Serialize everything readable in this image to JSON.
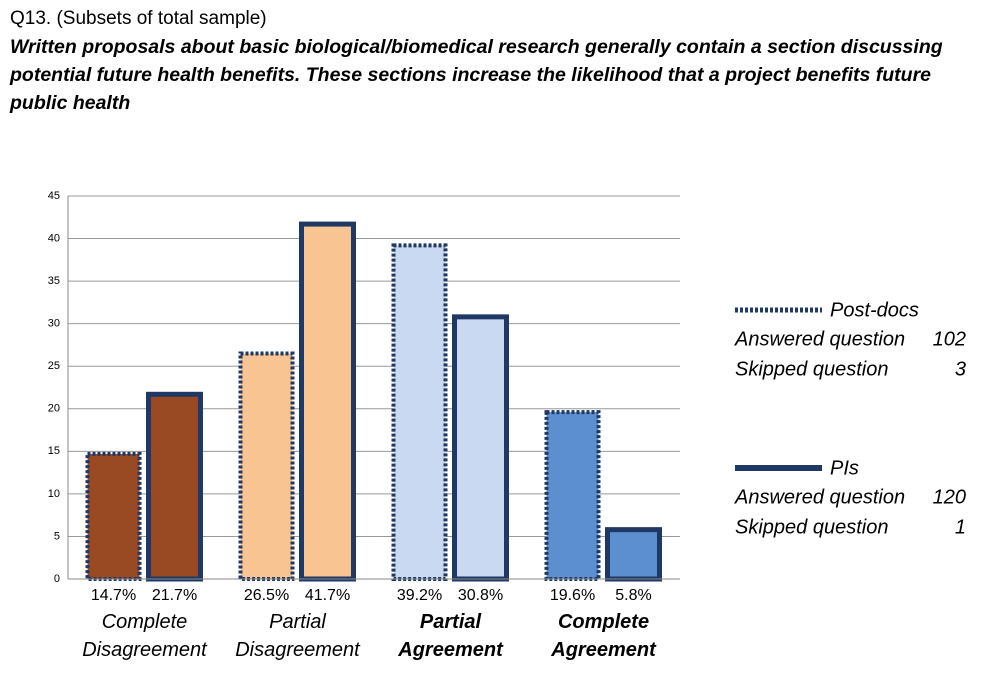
{
  "chart_data": {
    "type": "bar",
    "title": "Q13. (Subsets of total sample)",
    "subtitle": "Written proposals about basic biological/biomedical research generally contain a section discussing potential future health benefits. These sections increase the likelihood that a project benefits future public health",
    "categories": [
      "Complete Disagreement",
      "Partial Disagreement",
      "Partial Agreement",
      "Complete Agreement"
    ],
    "category_bold": [
      false,
      false,
      true,
      true
    ],
    "colors": [
      "#9a4a22",
      "#f8c491",
      "#c8d9f1",
      "#5b8fd0"
    ],
    "series": [
      {
        "name": "Post-docs",
        "color": "#1f3864",
        "line_style": "dotted",
        "values": [
          14.7,
          26.5,
          39.2,
          19.6
        ],
        "value_labels": [
          "14.7%",
          "26.5%",
          "39.2%",
          "19.6%"
        ],
        "notes": [
          {
            "label": "Answered question",
            "value": 102
          },
          {
            "label": "Skipped question",
            "value": 3
          }
        ]
      },
      {
        "name": "PIs",
        "color": "#1f3864",
        "line_style": "solid",
        "values": [
          21.7,
          41.7,
          30.8,
          5.8
        ],
        "value_labels": [
          "21.7%",
          "41.7%",
          "30.8%",
          "5.8%"
        ],
        "notes": [
          {
            "label": "Answered question",
            "value": 120
          },
          {
            "label": "Skipped question",
            "value": 1
          }
        ]
      }
    ],
    "ylim": [
      0,
      45
    ],
    "yticks": [
      0,
      5,
      10,
      15,
      20,
      25,
      30,
      35,
      40,
      45
    ],
    "grid": true
  }
}
